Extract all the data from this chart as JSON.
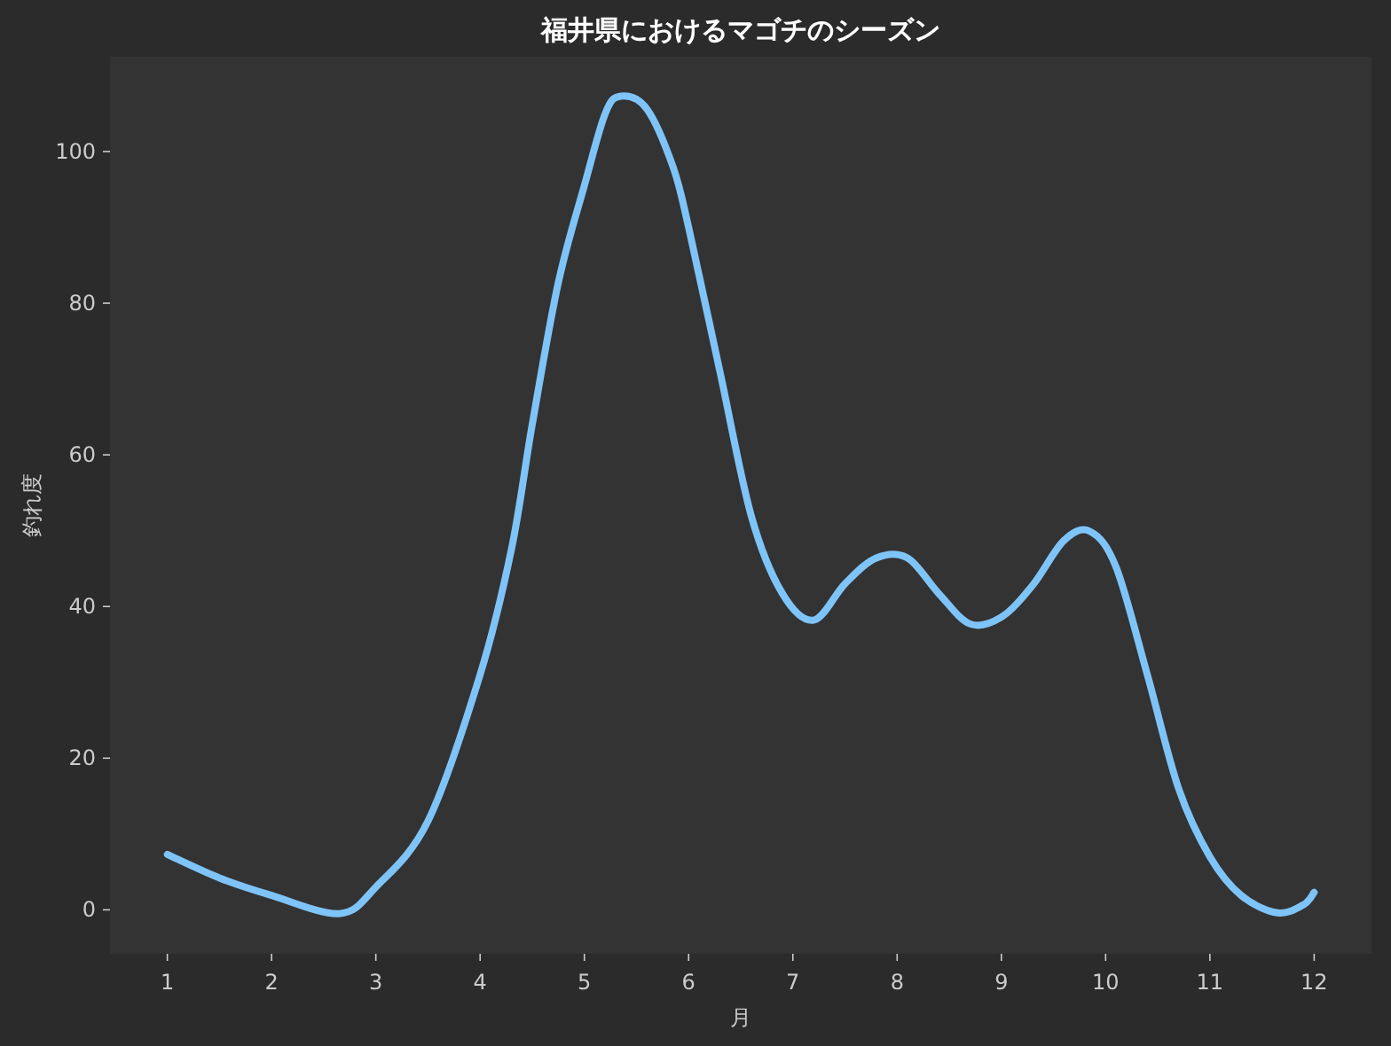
{
  "chart_data": {
    "type": "line",
    "title": "福井県におけるマゴチのシーズン",
    "xlabel": "月",
    "ylabel": "釣れ度",
    "xlim": [
      0.45,
      12.55
    ],
    "ylim": [
      -5.8,
      112.5
    ],
    "xticks": [
      1,
      2,
      3,
      4,
      5,
      6,
      7,
      8,
      9,
      10,
      11,
      12
    ],
    "yticks": [
      0,
      20,
      40,
      60,
      80,
      100
    ],
    "line_style": "solid",
    "series": [
      {
        "color": "#7ec4f8",
        "x": [
          1,
          1.5,
          2,
          2.65,
          3,
          3.5,
          4,
          4.3,
          4.5,
          4.75,
          5,
          5.2,
          5.35,
          5.6,
          5.85,
          6,
          6.3,
          6.6,
          6.9,
          7.2,
          7.5,
          7.8,
          8.1,
          8.4,
          8.7,
          9,
          9.3,
          9.6,
          9.85,
          10.1,
          10.4,
          10.7,
          11,
          11.3,
          11.65,
          11.9,
          12
        ],
        "values": [
          7.3,
          4.2,
          1.9,
          -0.5,
          3,
          11.7,
          31,
          47.5,
          64,
          82.7,
          95.5,
          105,
          107.3,
          105.6,
          98,
          90,
          71,
          52,
          41.7,
          38.2,
          43,
          46.4,
          46.4,
          41.7,
          37.7,
          38.6,
          42.8,
          48.7,
          49.9,
          45.2,
          31,
          16,
          7,
          1.9,
          -0.4,
          0.7,
          2.3
        ]
      }
    ]
  }
}
